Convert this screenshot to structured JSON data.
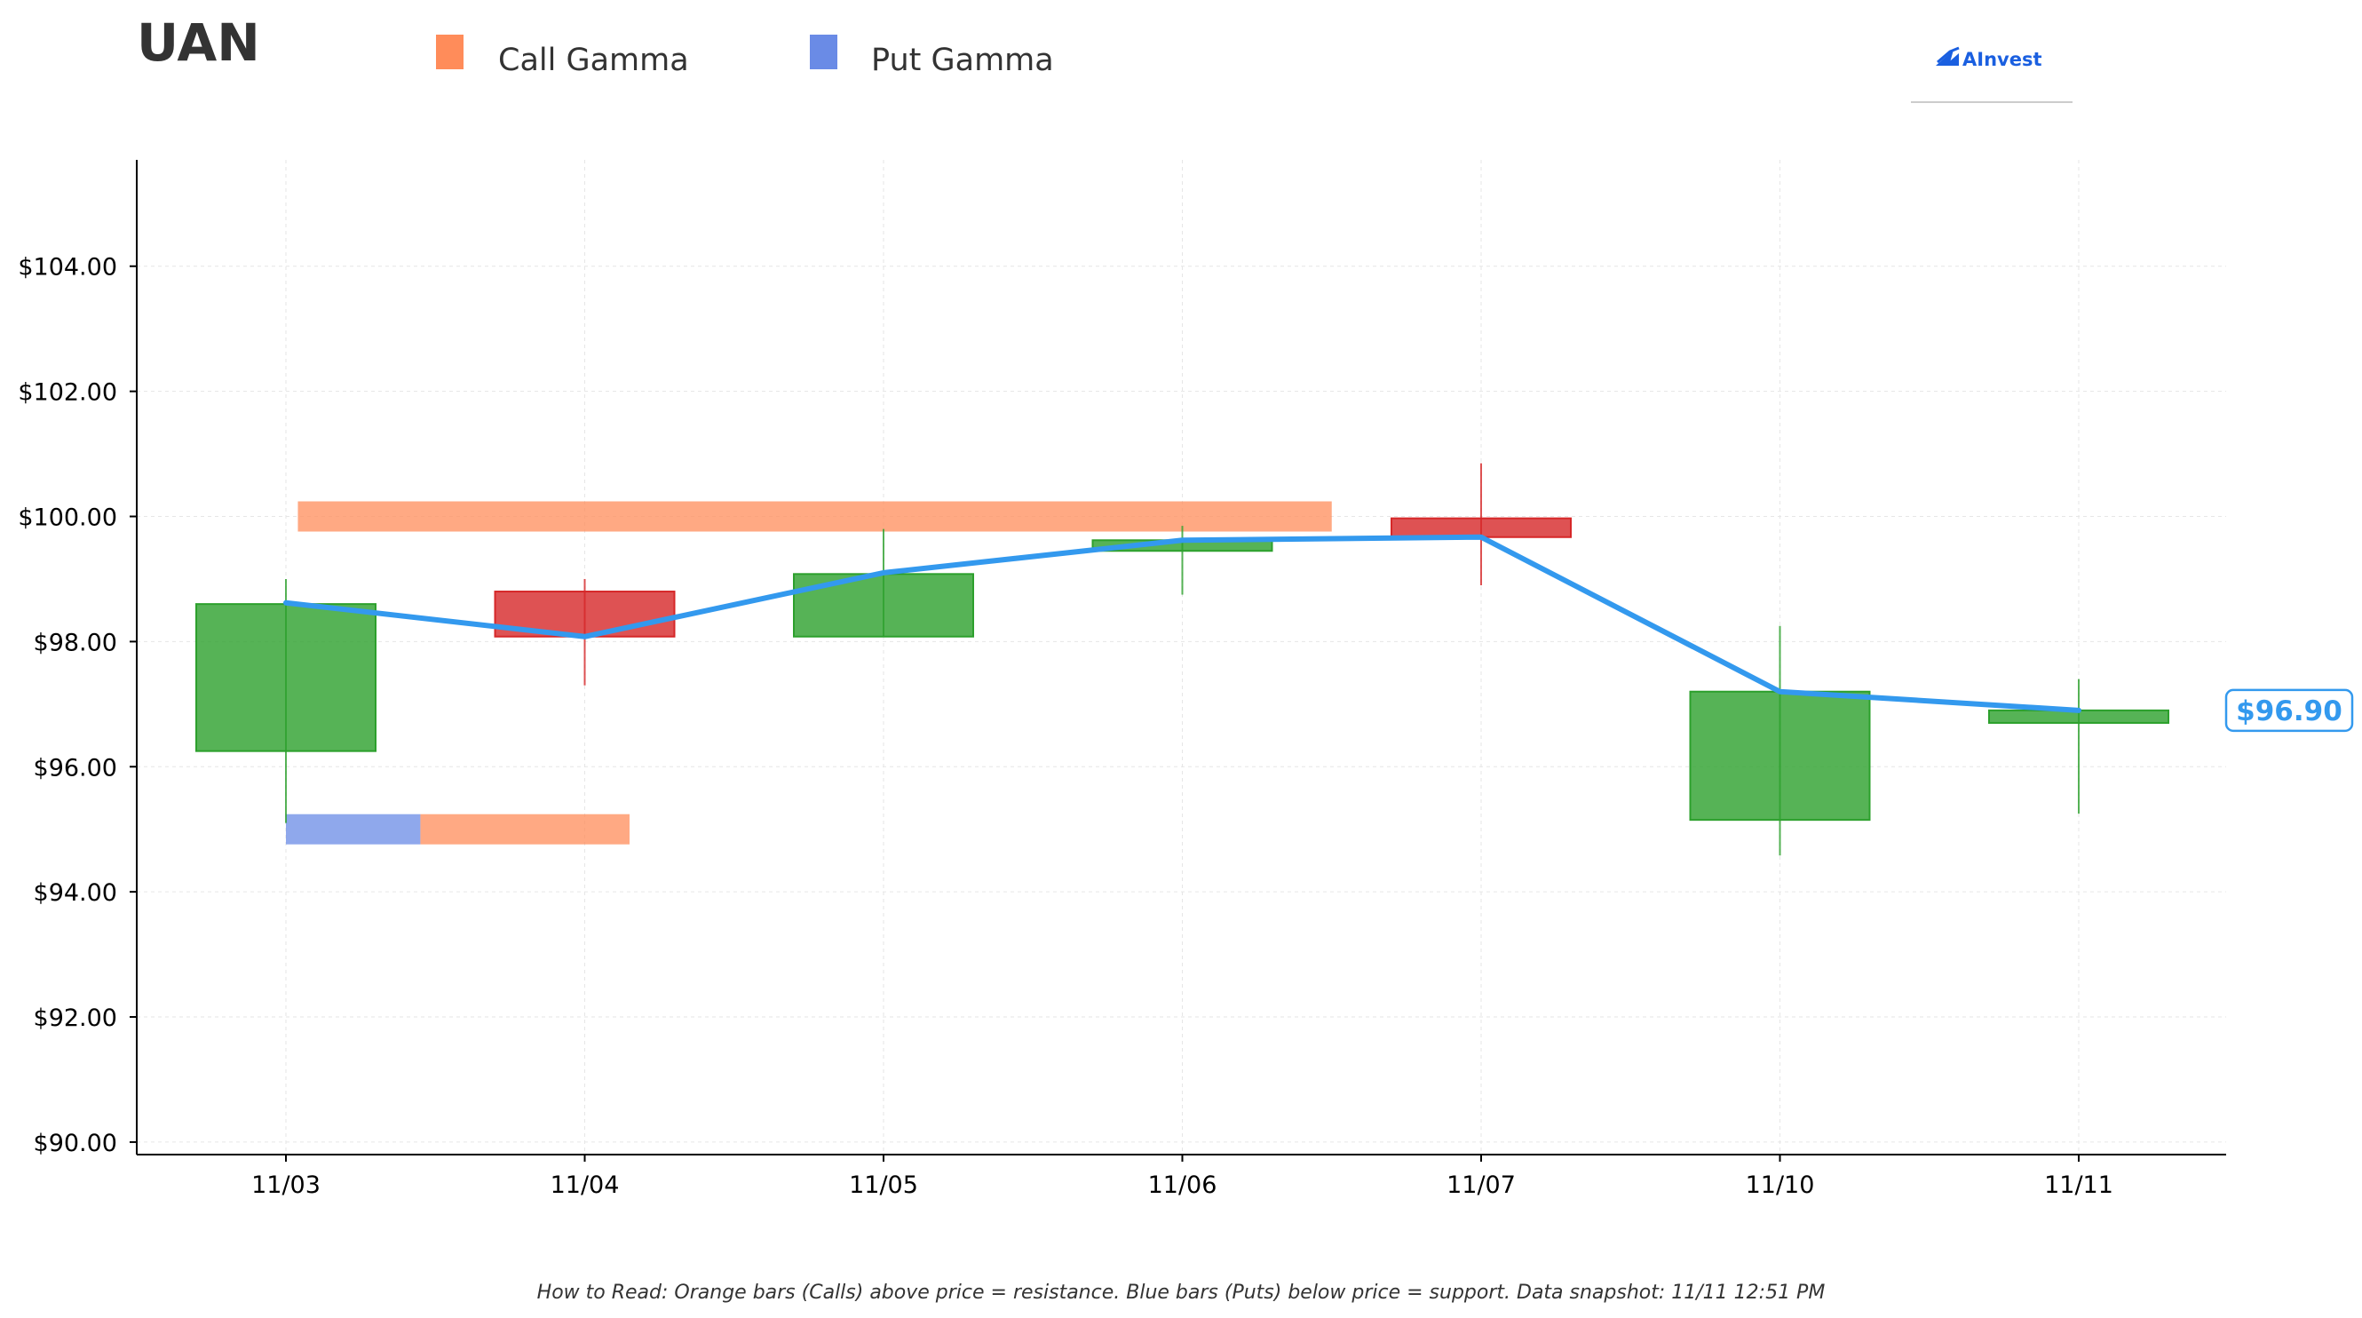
{
  "colors": {
    "up": "#2ca02c",
    "down": "#d62728",
    "call_gamma": "#ff8c5a",
    "put_gamma": "#6a8be6",
    "price_line": "#3399ee",
    "grid": "#e6e6e6",
    "logo": "#1a5fe0"
  },
  "logo": {
    "text": "AInvest",
    "icon": "ainvest-logo-icon"
  },
  "chart_data": {
    "type": "candlestick",
    "title": "UAN",
    "legend": [
      {
        "name": "Call Gamma",
        "color": "#ff8c5a"
      },
      {
        "name": "Put Gamma",
        "color": "#6a8be6"
      }
    ],
    "legend_position": "top",
    "categories": [
      "11/03",
      "11/04",
      "11/05",
      "11/06",
      "11/07",
      "11/10",
      "11/11"
    ],
    "candles": [
      {
        "date": "11/03",
        "open": 96.25,
        "close": 98.6,
        "high": 99.0,
        "low": 95.1
      },
      {
        "date": "11/04",
        "open": 98.8,
        "close": 98.08,
        "high": 99.0,
        "low": 97.3
      },
      {
        "date": "11/05",
        "open": 98.08,
        "close": 99.08,
        "high": 99.8,
        "low": 98.08
      },
      {
        "date": "11/06",
        "open": 99.45,
        "close": 99.62,
        "high": 99.85,
        "low": 98.75
      },
      {
        "date": "11/07",
        "open": 99.97,
        "close": 99.67,
        "high": 100.85,
        "low": 98.9
      },
      {
        "date": "11/10",
        "open": 95.15,
        "close": 97.2,
        "high": 98.25,
        "low": 94.58
      },
      {
        "date": "11/11",
        "open": 96.7,
        "close": 96.9,
        "high": 97.4,
        "low": 95.25
      }
    ],
    "price_line": {
      "x": [
        "11/03",
        "11/04",
        "11/05",
        "11/06",
        "11/07",
        "11/10",
        "11/11"
      ],
      "y": [
        98.62,
        98.08,
        99.1,
        99.62,
        99.67,
        97.2,
        96.9
      ]
    },
    "gamma_bars": [
      {
        "type": "call",
        "price": 100.0,
        "start": 0.04,
        "end": 3.5
      },
      {
        "type": "put",
        "price": 95.0,
        "start": 0.0,
        "end": 0.45
      },
      {
        "type": "call",
        "price": 95.0,
        "start": 0.45,
        "end": 1.15
      }
    ],
    "current_price_label": "$96.90",
    "yticks": [
      "$90.00",
      "$92.00",
      "$94.00",
      "$96.00",
      "$98.00",
      "$100.00",
      "$102.00",
      "$104.00"
    ],
    "ylim": [
      89.8,
      105.7
    ],
    "grid": true
  },
  "footnote": "How to Read: Orange bars (Calls) above price = resistance. Blue bars (Puts) below price = support. Data snapshot: 11/11 12:51 PM"
}
